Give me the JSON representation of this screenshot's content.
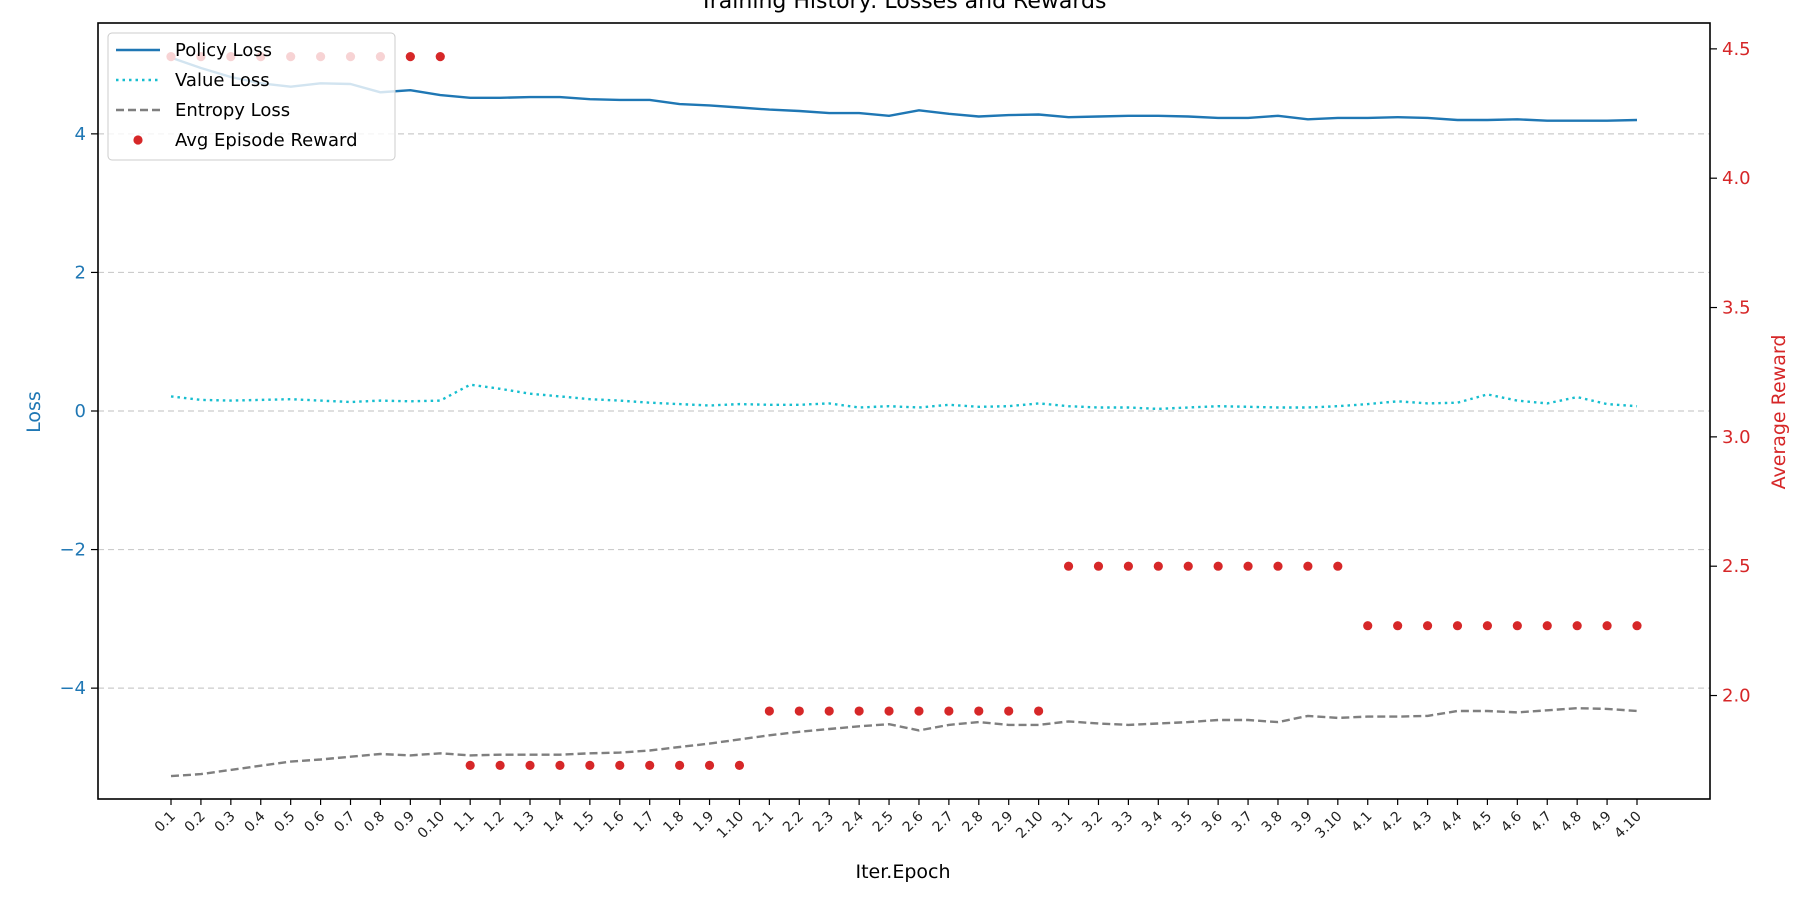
{
  "chart_data": {
    "type": "line",
    "title": "Training History: Losses and Rewards",
    "xlabel": "Iter.Epoch",
    "ylabel_left": "Loss",
    "ylabel_right": "Average Reward",
    "ylim_left": [
      -5.6,
      5.6
    ],
    "ylim_right": [
      1.6,
      4.6
    ],
    "yticks_left": [
      -4,
      -2,
      0,
      2,
      4
    ],
    "yticks_right": [
      2.0,
      2.5,
      3.0,
      3.5,
      4.0,
      4.5
    ],
    "yticks_left_labels": [
      "−4",
      "−2",
      "0",
      "2",
      "4"
    ],
    "yticks_right_labels": [
      "2.0",
      "2.5",
      "3.0",
      "3.5",
      "4.0",
      "4.5"
    ],
    "grid": "horizontal-dashed",
    "legend_position": "top-left",
    "colors": {
      "left_axis": "#1f77b4",
      "right_axis": "#d62728"
    },
    "categories": [
      "0.1",
      "0.2",
      "0.3",
      "0.4",
      "0.5",
      "0.6",
      "0.7",
      "0.8",
      "0.9",
      "0.10",
      "1.1",
      "1.2",
      "1.3",
      "1.4",
      "1.5",
      "1.6",
      "1.7",
      "1.8",
      "1.9",
      "1.10",
      "2.1",
      "2.2",
      "2.3",
      "2.4",
      "2.5",
      "2.6",
      "2.7",
      "2.8",
      "2.9",
      "2.10",
      "3.1",
      "3.2",
      "3.3",
      "3.4",
      "3.5",
      "3.6",
      "3.7",
      "3.8",
      "3.9",
      "3.10",
      "4.1",
      "4.2",
      "4.3",
      "4.4",
      "4.5",
      "4.6",
      "4.7",
      "4.8",
      "4.9",
      "4.10"
    ],
    "series": [
      {
        "name": "Policy Loss",
        "axis": "left",
        "style": "solid",
        "color": "#1f77b4",
        "values": [
          5.1,
          4.95,
          4.82,
          4.73,
          4.68,
          4.73,
          4.72,
          4.6,
          4.63,
          4.56,
          4.52,
          4.52,
          4.53,
          4.53,
          4.5,
          4.49,
          4.49,
          4.43,
          4.41,
          4.38,
          4.35,
          4.33,
          4.3,
          4.3,
          4.26,
          4.34,
          4.29,
          4.25,
          4.27,
          4.28,
          4.24,
          4.25,
          4.26,
          4.26,
          4.25,
          4.23,
          4.23,
          4.26,
          4.21,
          4.23,
          4.23,
          4.24,
          4.23,
          4.2,
          4.2,
          4.21,
          4.19,
          4.19,
          4.19,
          4.2
        ]
      },
      {
        "name": "Value Loss",
        "axis": "left",
        "style": "dotted",
        "color": "#17becf",
        "values": [
          0.21,
          0.16,
          0.15,
          0.16,
          0.17,
          0.15,
          0.13,
          0.15,
          0.14,
          0.15,
          0.38,
          0.32,
          0.25,
          0.21,
          0.17,
          0.15,
          0.12,
          0.1,
          0.08,
          0.1,
          0.09,
          0.09,
          0.11,
          0.05,
          0.07,
          0.05,
          0.09,
          0.06,
          0.07,
          0.11,
          0.07,
          0.05,
          0.05,
          0.03,
          0.05,
          0.07,
          0.06,
          0.05,
          0.05,
          0.07,
          0.1,
          0.14,
          0.11,
          0.12,
          0.24,
          0.15,
          0.11,
          0.2,
          0.1,
          0.07
        ]
      },
      {
        "name": "Entropy Loss",
        "axis": "left",
        "style": "dashed",
        "color": "#7f7f7f",
        "values": [
          -5.27,
          -5.24,
          -5.18,
          -5.12,
          -5.06,
          -5.03,
          -4.99,
          -4.95,
          -4.97,
          -4.94,
          -4.97,
          -4.96,
          -4.96,
          -4.96,
          -4.94,
          -4.93,
          -4.9,
          -4.85,
          -4.8,
          -4.74,
          -4.68,
          -4.63,
          -4.59,
          -4.55,
          -4.52,
          -4.61,
          -4.53,
          -4.49,
          -4.53,
          -4.53,
          -4.48,
          -4.51,
          -4.53,
          -4.51,
          -4.49,
          -4.46,
          -4.46,
          -4.49,
          -4.4,
          -4.43,
          -4.41,
          -4.41,
          -4.4,
          -4.33,
          -4.33,
          -4.35,
          -4.32,
          -4.29,
          -4.3,
          -4.33
        ]
      },
      {
        "name": "Avg Episode Reward",
        "axis": "right",
        "style": "points",
        "color": "#d62728",
        "values": [
          4.47,
          4.47,
          4.47,
          4.47,
          4.47,
          4.47,
          4.47,
          4.47,
          4.47,
          4.47,
          1.73,
          1.73,
          1.73,
          1.73,
          1.73,
          1.73,
          1.73,
          1.73,
          1.73,
          1.73,
          1.94,
          1.94,
          1.94,
          1.94,
          1.94,
          1.94,
          1.94,
          1.94,
          1.94,
          1.94,
          2.5,
          2.5,
          2.5,
          2.5,
          2.5,
          2.5,
          2.5,
          2.5,
          2.5,
          2.5,
          2.27,
          2.27,
          2.27,
          2.27,
          2.27,
          2.27,
          2.27,
          2.27,
          2.27,
          2.27
        ]
      }
    ]
  }
}
